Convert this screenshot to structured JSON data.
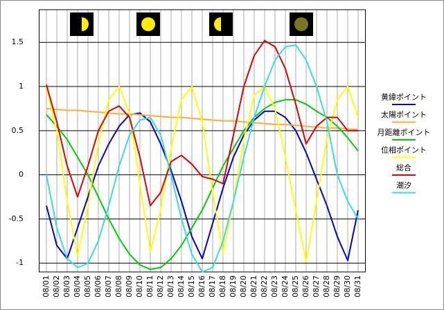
{
  "chart_data": {
    "type": "line",
    "categories": [
      "08/01",
      "08/02",
      "08/03",
      "08/04",
      "08/05",
      "08/06",
      "08/07",
      "08/08",
      "08/09",
      "08/10",
      "08/11",
      "08/12",
      "08/13",
      "08/14",
      "08/15",
      "08/16",
      "08/17",
      "08/18",
      "08/19",
      "08/20",
      "08/21",
      "08/22",
      "08/23",
      "08/24",
      "08/25",
      "08/26",
      "08/27",
      "08/28",
      "08/29",
      "08/30",
      "08/31"
    ],
    "series": [
      {
        "name": "黄緯ポイント",
        "color": "#0000cc",
        "values": [
          -0.35,
          -0.8,
          -0.95,
          -0.6,
          -0.25,
          0.1,
          0.35,
          0.55,
          0.68,
          0.7,
          0.6,
          0.35,
          0.05,
          -0.3,
          -0.7,
          -0.95,
          -0.55,
          -0.15,
          0.2,
          0.45,
          0.62,
          0.72,
          0.72,
          0.65,
          0.5,
          0.25,
          -0.05,
          -0.35,
          -0.7,
          -0.97,
          -0.4
        ]
      },
      {
        "name": "太陽ポイント",
        "color": "#ffaa33",
        "values": [
          0.75,
          0.74,
          0.73,
          0.73,
          0.72,
          0.71,
          0.7,
          0.69,
          0.69,
          0.68,
          0.67,
          0.66,
          0.65,
          0.65,
          0.64,
          0.63,
          0.62,
          0.61,
          0.61,
          0.6,
          0.59,
          0.58,
          0.57,
          0.57,
          0.56,
          0.55,
          0.54,
          0.53,
          0.53,
          0.52,
          0.51
        ]
      },
      {
        "name": "月距離ポイント",
        "color": "#00cc00",
        "values": [
          0.68,
          0.55,
          0.4,
          0.2,
          0.0,
          -0.25,
          -0.5,
          -0.72,
          -0.9,
          -1.02,
          -1.07,
          -1.05,
          -0.95,
          -0.8,
          -0.6,
          -0.4,
          -0.15,
          0.1,
          0.3,
          0.5,
          0.65,
          0.75,
          0.82,
          0.85,
          0.85,
          0.8,
          0.72,
          0.65,
          0.55,
          0.42,
          0.27
        ]
      },
      {
        "name": "位相ポイント",
        "color": "#ffff00",
        "values": [
          1.0,
          0.5,
          -0.3,
          -0.92,
          -0.35,
          0.35,
          0.85,
          1.0,
          0.7,
          -0.1,
          -0.87,
          -0.4,
          0.3,
          0.85,
          1.0,
          0.6,
          -0.2,
          -0.88,
          -0.3,
          0.4,
          0.9,
          1.0,
          0.75,
          0.2,
          -0.4,
          -0.98,
          -0.3,
          0.4,
          0.85,
          1.0,
          0.65
        ]
      },
      {
        "name": "総合",
        "color": "#dd0000",
        "values": [
          1.02,
          0.6,
          0.1,
          -0.25,
          0.1,
          0.5,
          0.72,
          0.78,
          0.65,
          0.2,
          -0.35,
          -0.2,
          0.15,
          0.22,
          0.12,
          -0.02,
          -0.05,
          -0.1,
          0.45,
          1.0,
          1.35,
          1.52,
          1.45,
          1.2,
          0.8,
          0.35,
          0.55,
          0.65,
          0.65,
          0.5,
          0.5
        ]
      },
      {
        "name": "潮汐",
        "color": "#33dddd",
        "values": [
          0.0,
          -0.6,
          -0.95,
          -1.05,
          -1.0,
          -0.75,
          -0.35,
          0.1,
          0.45,
          0.62,
          0.65,
          0.45,
          0.0,
          -0.5,
          -0.9,
          -1.1,
          -1.05,
          -0.75,
          -0.3,
          0.2,
          0.65,
          1.0,
          1.3,
          1.45,
          1.47,
          1.3,
          1.0,
          0.6,
          0.0,
          -0.3,
          -0.5
        ]
      }
    ],
    "ylim": [
      -1.1,
      1.87
    ],
    "yticks": [
      -1,
      -0.5,
      0,
      0.5,
      1,
      1.5
    ],
    "grid": true
  }
}
